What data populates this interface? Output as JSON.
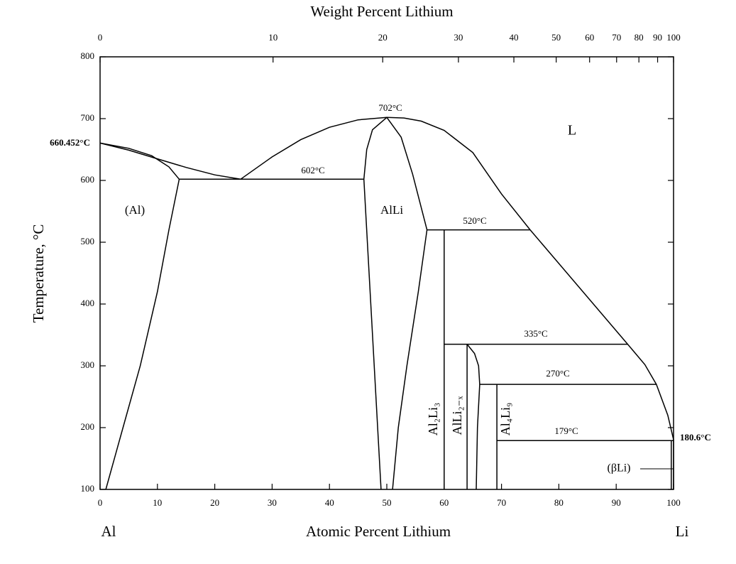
{
  "chart_data": {
    "type": "line",
    "x2label": "Weight Percent Lithium",
    "xlabel": "Atomic Percent Lithium",
    "ylabel": "Temperature, °C",
    "x_left_label": "Al",
    "x_right_label": "Li",
    "xlim": [
      0,
      100
    ],
    "xticks": [
      0,
      10,
      20,
      30,
      40,
      50,
      60,
      70,
      80,
      90,
      100
    ],
    "x2ticks": [
      0,
      10,
      20,
      30,
      40,
      50,
      60,
      70,
      80,
      90,
      100
    ],
    "ylim": [
      100,
      800
    ],
    "yticks": [
      100,
      200,
      300,
      400,
      500,
      600,
      700,
      800
    ],
    "color": "#000000",
    "annotations": [
      "(Al)",
      "AlLi",
      "L",
      "702°C",
      "602°C",
      "520°C",
      "335°C",
      "270°C",
      "179°C",
      "(βLi)",
      "Al₂Li₃",
      "AlLi₂₋ₓ",
      "Al₄Li₉",
      "660.452°C",
      "180.6°C"
    ],
    "series": [
      {
        "x": [
          0,
          5,
          10,
          15,
          20,
          24.5
        ],
        "values": [
          660.452,
          649,
          635,
          621,
          609,
          602
        ]
      },
      {
        "x": [
          0,
          5,
          9,
          12,
          13.8
        ],
        "values": [
          660.452,
          652,
          640,
          622,
          602
        ]
      },
      {
        "x": [
          13.8,
          12,
          10,
          7,
          4,
          1
        ],
        "values": [
          602,
          520,
          420,
          300,
          200,
          100
        ]
      },
      {
        "x": [
          13.8,
          46
        ],
        "values": [
          602,
          602
        ]
      },
      {
        "x": [
          24.5,
          30,
          35,
          40,
          45,
          50,
          53,
          56,
          60,
          65,
          70,
          75,
          92,
          95,
          97,
          99,
          100
        ],
        "values": [
          602,
          638,
          666,
          686,
          698,
          702,
          701,
          696,
          681,
          645,
          578,
          520,
          335,
          302,
          270,
          220,
          180.6
        ]
      },
      {
        "x": [
          49,
          46,
          46.5,
          47.5,
          50
        ],
        "values": [
          100,
          602,
          650,
          682,
          702
        ]
      },
      {
        "x": [
          50,
          52.5,
          54.5,
          57,
          55.5,
          53.5,
          52,
          51
        ],
        "values": [
          702,
          670,
          610,
          520,
          420,
          300,
          200,
          100
        ]
      },
      {
        "x": [
          57,
          75
        ],
        "values": [
          520,
          520
        ]
      },
      {
        "x": [
          60,
          60
        ],
        "values": [
          520,
          100
        ]
      },
      {
        "x": [
          60,
          92
        ],
        "values": [
          335,
          335
        ]
      },
      {
        "x": [
          64,
          64
        ],
        "values": [
          335,
          100
        ]
      },
      {
        "x": [
          64,
          65.3,
          66,
          66.2,
          65.8,
          65.6
        ],
        "values": [
          335,
          320,
          300,
          270,
          200,
          100
        ]
      },
      {
        "x": [
          66.2,
          97
        ],
        "values": [
          270,
          270
        ]
      },
      {
        "x": [
          69.2,
          69.2
        ],
        "values": [
          270,
          100
        ]
      },
      {
        "x": [
          69.2,
          100
        ],
        "values": [
          179,
          179
        ]
      },
      {
        "x": [
          100,
          100
        ],
        "values": [
          180.6,
          100
        ]
      },
      {
        "x": [
          99.6,
          99.6
        ],
        "values": [
          179,
          100
        ]
      }
    ]
  }
}
